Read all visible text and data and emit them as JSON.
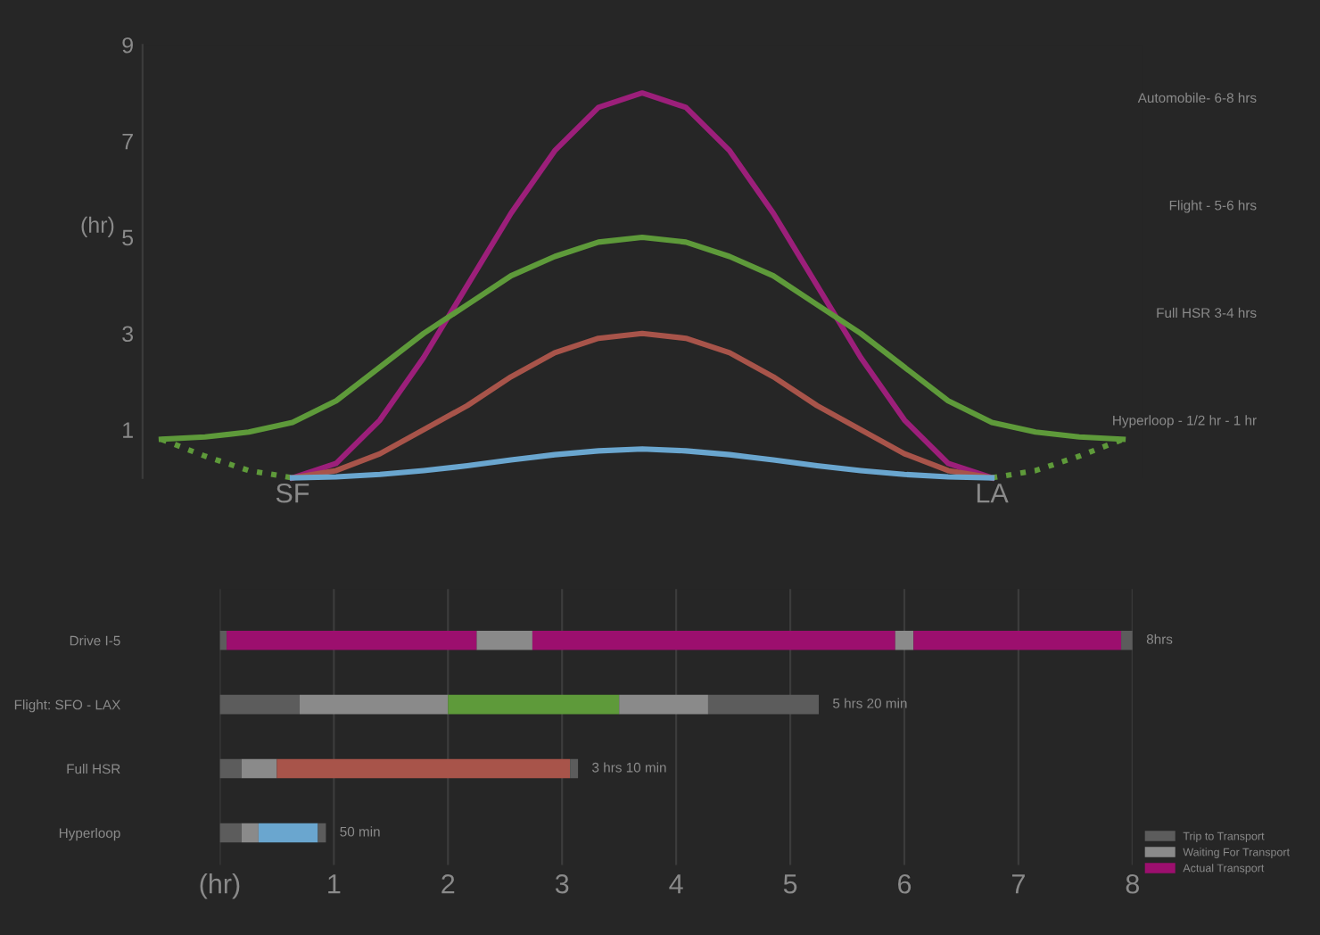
{
  "chart_data": [
    {
      "type": "line",
      "ylabel": "(hr)",
      "categories": [
        null,
        null,
        null,
        "SF",
        null,
        null,
        null,
        null,
        null,
        null,
        null,
        null,
        null,
        null,
        null,
        null,
        null,
        null,
        null,
        "LA",
        null,
        null,
        null
      ],
      "ylim": [
        0,
        9
      ],
      "yticks": [
        1,
        3,
        5,
        7,
        9
      ],
      "grid": false,
      "marker": "none",
      "line_style": "solid",
      "annotations": [
        "Automobile- 6-8 hrs",
        "Flight - 5-6 hrs",
        "Full HSR 3-4 hrs",
        "Hyperloop - 1/2 hr - 1 hr"
      ],
      "series": [
        {
          "color": "#9c1f7a",
          "values": [
            null,
            null,
            null,
            0,
            0.3,
            1.2,
            2.5,
            4.0,
            5.5,
            6.8,
            7.7,
            8.0,
            7.7,
            6.8,
            5.5,
            4.0,
            2.5,
            1.2,
            0.3,
            0,
            null,
            null,
            null
          ]
        },
        {
          "color": "#5e9a3a",
          "values": [
            0.8,
            0.85,
            0.95,
            1.15,
            1.6,
            2.3,
            3.0,
            3.6,
            4.2,
            4.6,
            4.9,
            5.0,
            4.9,
            4.6,
            4.2,
            3.6,
            3.0,
            2.3,
            1.6,
            1.15,
            0.95,
            0.85,
            0.8
          ]
        },
        {
          "color": "#5e9a3a",
          "line_style": "dotted",
          "values": [
            0.8,
            0.45,
            0.15,
            0,
            null,
            null,
            null,
            null,
            null,
            null,
            null,
            null,
            null,
            null,
            null,
            null,
            null,
            null,
            null,
            0,
            0.15,
            0.45,
            0.8
          ]
        },
        {
          "color": "#a8544a",
          "values": [
            null,
            null,
            null,
            0,
            0.15,
            0.5,
            1.0,
            1.5,
            2.1,
            2.6,
            2.9,
            3.0,
            2.9,
            2.6,
            2.1,
            1.5,
            1.0,
            0.5,
            0.15,
            0,
            null,
            null,
            null
          ]
        },
        {
          "color": "#6aa6cf",
          "values": [
            null,
            null,
            null,
            0,
            0.02,
            0.07,
            0.15,
            0.25,
            0.37,
            0.48,
            0.56,
            0.6,
            0.56,
            0.48,
            0.37,
            0.25,
            0.15,
            0.07,
            0.02,
            0,
            null,
            null,
            null
          ]
        }
      ]
    },
    {
      "type": "bar",
      "orientation": "horizontal",
      "categories": [
        "Drive I-5",
        "Flight: SFO - LAX",
        "Full HSR",
        "Hyperloop"
      ],
      "xlim": [
        0,
        8
      ],
      "xticks": [
        {
          "value": 0,
          "label": "(hr)"
        },
        1,
        2,
        3,
        4,
        5,
        6,
        7,
        8
      ],
      "grid": "x",
      "legend": "bottom right",
      "annotations": [
        {
          "text": "8hrs",
          "x": 8,
          "y": "Drive I-5"
        },
        {
          "text": "5 hrs 20 min",
          "x": 5.25,
          "y": "Flight: SFO - LAX"
        },
        {
          "text": "3 hrs 10 min",
          "x": 3.14,
          "y": "Full HSR"
        },
        {
          "text": "50 min",
          "x": 0.93,
          "y": "Hyperloop"
        }
      ],
      "series": [
        {
          "name": "Trip to Transport",
          "color": "#5c5c5c",
          "base": [
            0,
            0,
            0,
            0
          ],
          "values": [
            0.06,
            0.7,
            0.19,
            0.19
          ]
        },
        {
          "name": "Waiting For Transport",
          "color": "#8a8a8a",
          "base": [
            2.25,
            0.7,
            0.19,
            0.19
          ],
          "values": [
            0.49,
            1.3,
            0.31,
            0.15
          ]
        },
        {
          "name": "Actual Transport",
          "color": "#9c0f6e",
          "colors": [
            "#9c0f6e",
            "#5e9a3a",
            "#a8544a",
            "#6aa6cf"
          ],
          "base": [
            0.06,
            2.0,
            0.5,
            0.34
          ],
          "values": [
            2.19,
            1.5,
            2.57,
            0.52
          ]
        },
        {
          "color": "#9c0f6e",
          "base": [
            2.74,
            null,
            null,
            null
          ],
          "values": [
            3.18,
            null,
            null,
            null
          ]
        },
        {
          "color": "#8a8a8a",
          "base": [
            5.92,
            3.5,
            null,
            null
          ],
          "values": [
            0.16,
            0.78,
            null,
            null
          ]
        },
        {
          "color": "#9c0f6e",
          "base": [
            6.08,
            null,
            null,
            null
          ],
          "values": [
            1.82,
            null,
            null,
            null
          ]
        },
        {
          "color": "#5c5c5c",
          "base": [
            7.9,
            4.28,
            3.07,
            0.86
          ],
          "values": [
            0.1,
            0.97,
            0.07,
            0.07
          ]
        }
      ]
    }
  ]
}
